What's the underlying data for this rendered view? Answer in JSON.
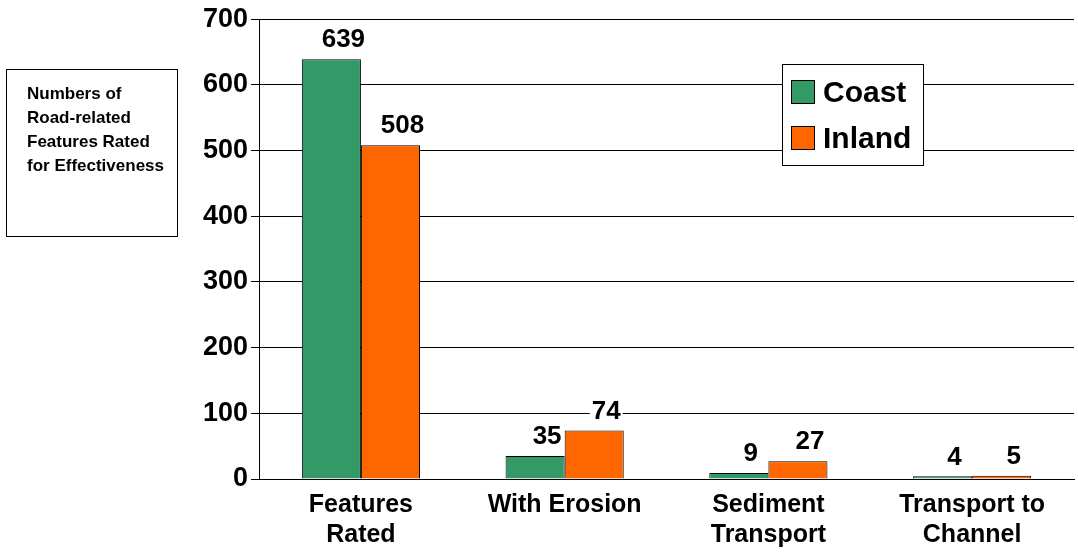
{
  "chart_data": {
    "type": "bar",
    "ylabel": "Numbers of Road-related Features Rated for Effectiveness",
    "categories": [
      "Features Rated",
      "With Erosion",
      "Sediment Transport",
      "Transport to Channel"
    ],
    "series": [
      {
        "name": "Coast",
        "color": "#339966",
        "values": [
          639,
          35,
          9,
          4
        ]
      },
      {
        "name": "Inland",
        "color": "#ff6600",
        "values": [
          508,
          74,
          27,
          5
        ]
      }
    ],
    "ylim": [
      0,
      700
    ],
    "yticks": [
      0,
      100,
      200,
      300,
      400,
      500,
      600,
      700
    ],
    "grid": "y",
    "legend": "top right",
    "data_labels": true
  }
}
